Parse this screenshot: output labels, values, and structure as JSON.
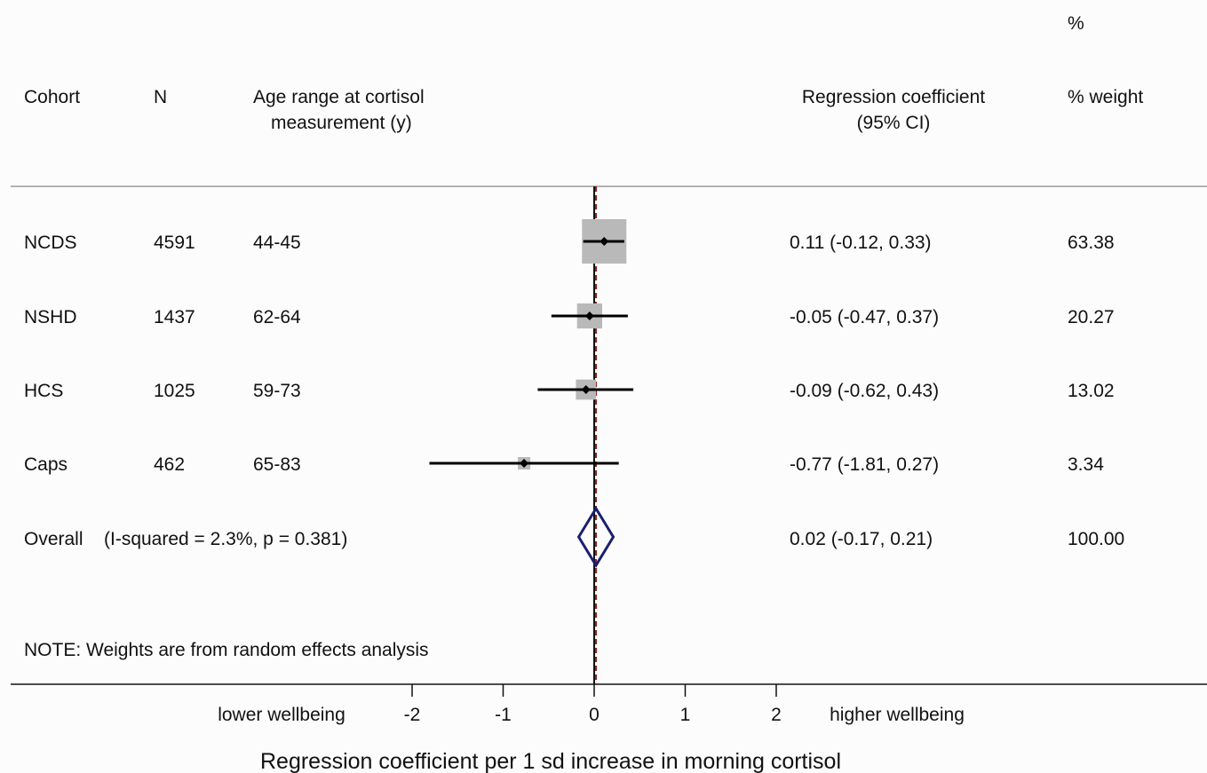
{
  "chart_data": {
    "type": "forest",
    "header": {
      "top_percent": "%",
      "cohort": "Cohort",
      "n": "N",
      "age_line1": "Age range at cortisol",
      "age_line2": "measurement (y)",
      "coef_line1": "Regression coefficient",
      "coef_line2": "(95% CI)",
      "weight": "% weight"
    },
    "studies": [
      {
        "cohort": "NCDS",
        "n": "4591",
        "age": "44-45",
        "coef": 0.11,
        "lo": -0.12,
        "hi": 0.33,
        "ci_text": "0.11 (-0.12, 0.33)",
        "weight": 63.38,
        "weight_text": "63.38"
      },
      {
        "cohort": "NSHD",
        "n": "1437",
        "age": "62-64",
        "coef": -0.05,
        "lo": -0.47,
        "hi": 0.37,
        "ci_text": "-0.05 (-0.47, 0.37)",
        "weight": 20.27,
        "weight_text": "20.27"
      },
      {
        "cohort": "HCS",
        "n": "1025",
        "age": "59-73",
        "coef": -0.09,
        "lo": -0.62,
        "hi": 0.43,
        "ci_text": "-0.09 (-0.62, 0.43)",
        "weight": 13.02,
        "weight_text": "13.02"
      },
      {
        "cohort": "Caps",
        "n": "462",
        "age": "65-83",
        "coef": -0.77,
        "lo": -1.81,
        "hi": 0.27,
        "ci_text": "-0.77 (-1.81, 0.27)",
        "weight": 3.34,
        "weight_text": "3.34"
      }
    ],
    "overall": {
      "label": "Overall",
      "heterogeneity": "(I-squared = 2.3%, p = 0.381)",
      "coef": 0.02,
      "lo": -0.17,
      "hi": 0.21,
      "ci_text": "0.02 (-0.17, 0.21)",
      "weight_text": "100.00"
    },
    "note": "NOTE:  Weights are from random effects analysis",
    "x_axis": {
      "ticks": [
        -2,
        -1,
        0,
        1,
        2
      ],
      "tick_labels": [
        "-2",
        "-1",
        "0",
        "1",
        "2"
      ],
      "left_label": "lower wellbeing",
      "right_label": "higher wellbeing",
      "label": "Regression coefficient per 1 sd increase in morning cortisol"
    },
    "colors": {
      "weight_box": "#b9b9b9",
      "diamond": "#1a1f6e",
      "null_line": "#111111",
      "overall_line": "#8b1a1a",
      "ci_line": "#000000"
    }
  }
}
